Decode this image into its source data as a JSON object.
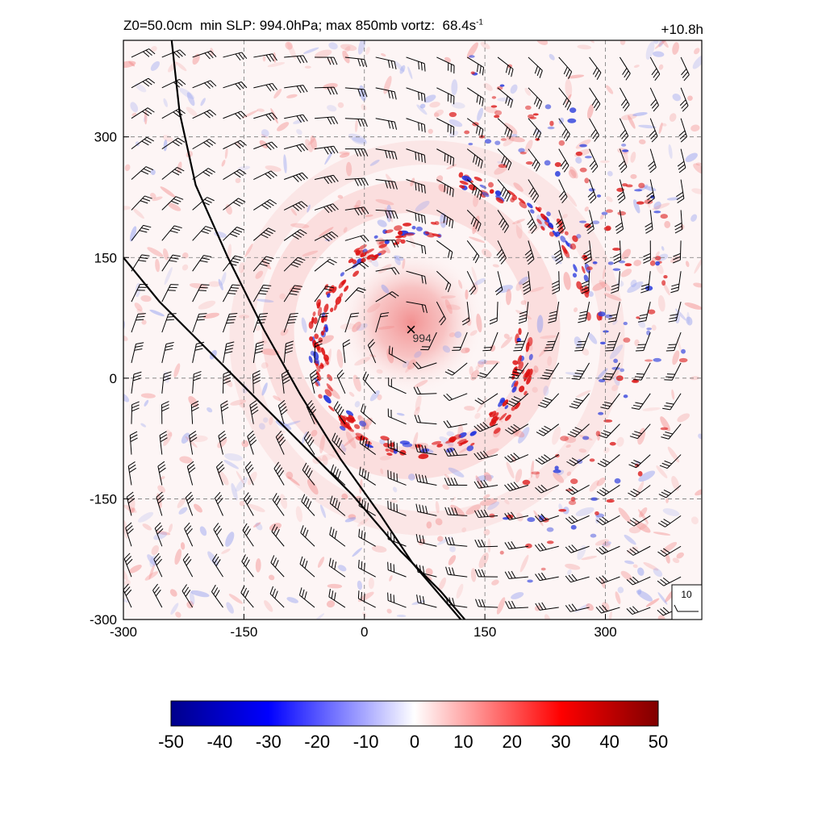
{
  "header": {
    "roughness": "Z0=50.0cm",
    "min_slp_label": "min SLP:",
    "min_slp_value": "994.0hPa;",
    "max_vort_label": "max 850mb vortz:",
    "max_vort_value": "68.4s",
    "max_vort_exponent": "-1",
    "forecast_hour": "+10.8h"
  },
  "chart_data": {
    "type": "heatmap",
    "field": "850mb relative vorticity",
    "xlim": [
      -300,
      420
    ],
    "ylim": [
      -300,
      420
    ],
    "x_ticks": [
      -300,
      -150,
      0,
      150,
      300
    ],
    "y_ticks": [
      -300,
      -150,
      0,
      150,
      300
    ],
    "x_tick_labels": [
      "-300",
      "-150",
      "0",
      "150",
      "300"
    ],
    "y_tick_labels": [
      "-300",
      "-150",
      "0",
      "150",
      "300"
    ],
    "grid": "dashed",
    "storm_center": {
      "x": 58,
      "y": 60,
      "marker": "×",
      "label": "994"
    },
    "coastlines": [
      [
        [
          -240,
          420
        ],
        [
          -230,
          330
        ],
        [
          -210,
          240
        ],
        [
          -170,
          150
        ],
        [
          -125,
          60
        ],
        [
          -80,
          -20
        ],
        [
          -30,
          -100
        ],
        [
          20,
          -170
        ],
        [
          60,
          -230
        ],
        [
          120,
          -300
        ]
      ],
      [
        [
          -300,
          150
        ],
        [
          -255,
          95
        ],
        [
          -200,
          40
        ],
        [
          -140,
          -20
        ],
        [
          -80,
          -80
        ],
        [
          -15,
          -145
        ],
        [
          45,
          -215
        ],
        [
          95,
          -265
        ],
        [
          125,
          -300
        ]
      ]
    ],
    "wind_barbs": {
      "reference_speed": 10,
      "reference_label": "10",
      "flow": "cyclonic"
    },
    "colorbar": {
      "min": -50,
      "max": 50,
      "tick_labels": [
        "-50",
        "-40",
        "-30",
        "-20",
        "-10",
        "0",
        "10",
        "20",
        "30",
        "40",
        "50"
      ],
      "colors": [
        "#00008b",
        "#0000ff",
        "#ffffff",
        "#ff0000",
        "#800000"
      ]
    }
  }
}
